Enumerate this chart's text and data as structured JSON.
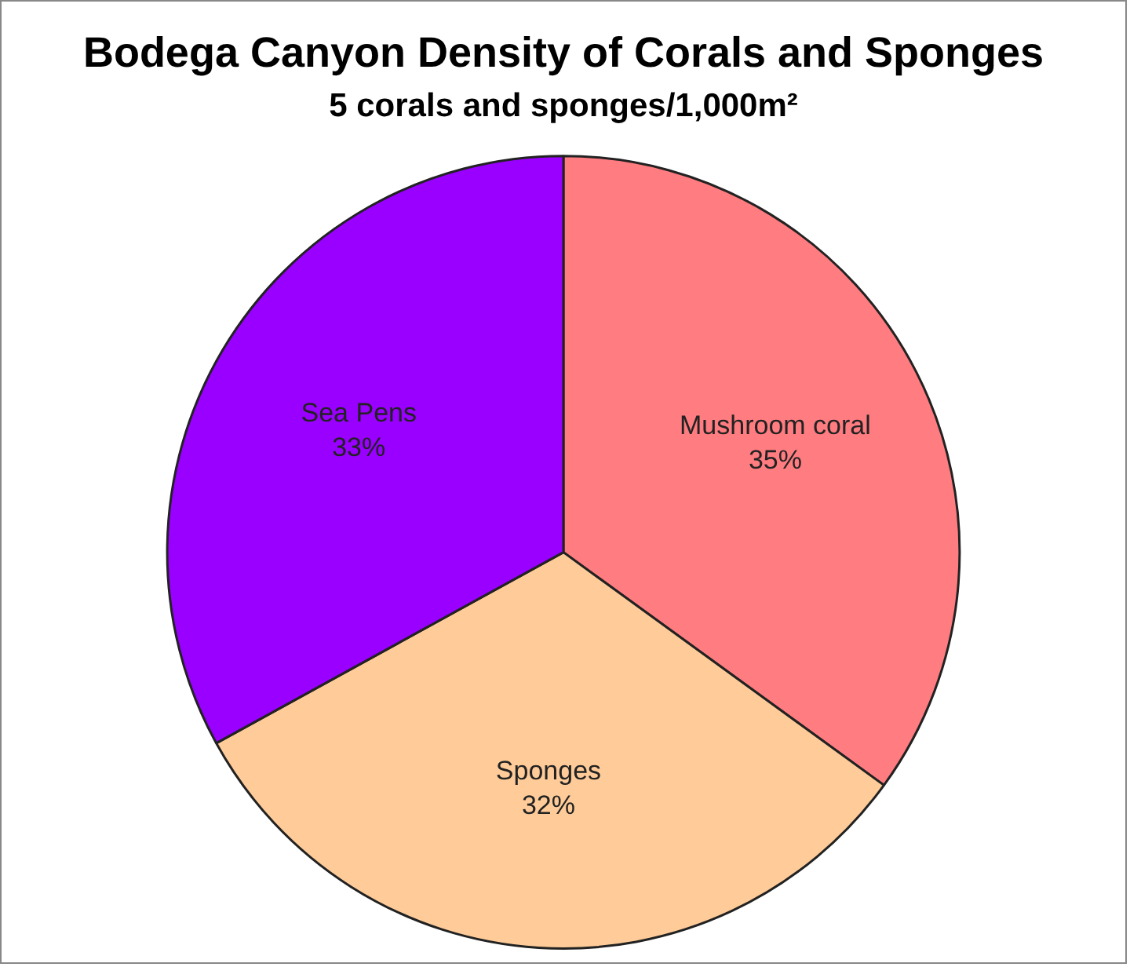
{
  "chart_data": {
    "type": "pie",
    "title": "Bodega Canyon Density of Corals and Sponges",
    "subtitle": "5 corals and sponges/1,000m²",
    "categories": [
      "Mushroom coral",
      "Sponges",
      "Sea Pens"
    ],
    "values": [
      35,
      32,
      33
    ],
    "colors": [
      "#ff7c80",
      "#ffcc99",
      "#9900ff"
    ],
    "value_labels": [
      "35%",
      "32%",
      "33%"
    ],
    "legend": false
  }
}
